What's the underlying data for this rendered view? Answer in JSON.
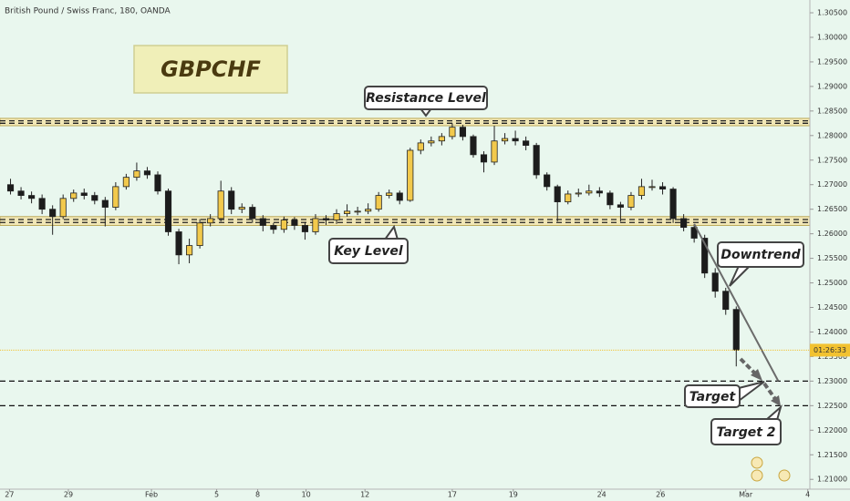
{
  "chart_data": {
    "type": "candlestick",
    "title": "British Pound / Swiss Franc, 180, OANDA",
    "symbol": "GBPCHF",
    "countdown": "01:26:33",
    "colors": {
      "up": "#f2c94c",
      "down": "#1c1c1c",
      "wick": "#222222",
      "zone": "#f2e6b0",
      "last": "#f2c230",
      "trend": "#6b6b6b"
    },
    "grid": false,
    "open": [
      1.27,
      1.2687,
      1.2678,
      1.2672,
      1.265,
      1.2635,
      1.2672,
      1.2683,
      1.2678,
      1.2668,
      1.2654,
      1.2696,
      1.2715,
      1.2728,
      1.272,
      1.2687,
      1.2604,
      1.2557,
      1.2576,
      1.2622,
      1.2631,
      1.2687,
      1.265,
      1.2654,
      1.2631,
      1.2617,
      1.2609,
      1.2628,
      1.2617,
      1.2604,
      1.2631,
      1.2628,
      1.2641,
      1.2646,
      1.2646,
      1.265,
      1.2678,
      1.2683,
      1.2668,
      1.277,
      1.2785,
      1.2789,
      1.2798,
      1.2817,
      1.2798,
      1.2761,
      1.2746,
      1.2789,
      1.2794,
      1.2789,
      1.278,
      1.272,
      1.2696,
      1.2665,
      1.2681,
      1.2683,
      1.2687,
      1.2683,
      1.2659,
      1.2654,
      1.2678,
      1.2696,
      1.2696,
      1.2691,
      1.2631,
      1.2613,
      1.2591,
      1.252,
      1.2483,
      1.2446
    ],
    "high": [
      1.2712,
      1.2695,
      1.2686,
      1.268,
      1.2658,
      1.268,
      1.269,
      1.2692,
      1.2685,
      1.2675,
      1.2705,
      1.2722,
      1.2745,
      1.2736,
      1.2727,
      1.2692,
      1.261,
      1.259,
      1.263,
      1.264,
      1.2708,
      1.2695,
      1.2662,
      1.266,
      1.2638,
      1.2622,
      1.2635,
      1.2634,
      1.2624,
      1.264,
      1.2638,
      1.265,
      1.266,
      1.2655,
      1.2662,
      1.2685,
      1.269,
      1.2688,
      1.2775,
      1.2792,
      1.2798,
      1.2805,
      1.2825,
      1.2822,
      1.2802,
      1.2768,
      1.282,
      1.2805,
      1.281,
      1.2798,
      1.2785,
      1.2725,
      1.27,
      1.2688,
      1.2692,
      1.27,
      1.2695,
      1.2688,
      1.2665,
      1.2685,
      1.2712,
      1.271,
      1.2705,
      1.2695,
      1.264,
      1.2618,
      1.2598,
      1.253,
      1.249,
      1.2452
    ],
    "low": [
      1.268,
      1.267,
      1.2662,
      1.264,
      1.2598,
      1.263,
      1.2665,
      1.267,
      1.266,
      1.2615,
      1.2648,
      1.269,
      1.2708,
      1.2712,
      1.268,
      1.2596,
      1.2538,
      1.254,
      1.257,
      1.2615,
      1.2625,
      1.264,
      1.2642,
      1.2622,
      1.2605,
      1.26,
      1.2602,
      1.2608,
      1.2588,
      1.2598,
      1.2618,
      1.262,
      1.2635,
      1.2638,
      1.264,
      1.2645,
      1.2672,
      1.266,
      1.2665,
      1.2762,
      1.2778,
      1.278,
      1.2792,
      1.279,
      1.2755,
      1.2725,
      1.274,
      1.2782,
      1.278,
      1.277,
      1.2712,
      1.2688,
      1.2625,
      1.266,
      1.2675,
      1.2678,
      1.2675,
      1.265,
      1.2625,
      1.2648,
      1.267,
      1.2688,
      1.268,
      1.2622,
      1.2605,
      1.2582,
      1.251,
      1.247,
      1.2435,
      1.233
    ],
    "close": [
      1.2687,
      1.2678,
      1.2672,
      1.265,
      1.2635,
      1.2672,
      1.2683,
      1.2678,
      1.2668,
      1.2654,
      1.2696,
      1.2715,
      1.2728,
      1.272,
      1.2687,
      1.2604,
      1.2557,
      1.2576,
      1.2622,
      1.2631,
      1.2687,
      1.265,
      1.2654,
      1.2631,
      1.2617,
      1.2609,
      1.2628,
      1.2617,
      1.2604,
      1.2631,
      1.2628,
      1.2641,
      1.2646,
      1.2646,
      1.265,
      1.2678,
      1.2683,
      1.2668,
      1.277,
      1.2785,
      1.2789,
      1.2798,
      1.2817,
      1.2798,
      1.2761,
      1.2746,
      1.2789,
      1.2794,
      1.2789,
      1.278,
      1.272,
      1.2696,
      1.2665,
      1.2681,
      1.2683,
      1.2687,
      1.2683,
      1.2659,
      1.2654,
      1.2678,
      1.2696,
      1.2696,
      1.2691,
      1.2631,
      1.2613,
      1.2591,
      1.252,
      1.2483,
      1.2446,
      1.2363
    ],
    "xlim": [
      -1,
      76
    ],
    "xticks": [
      {
        "value": -0.1,
        "label": "27"
      },
      {
        "value": 5.5,
        "label": "29"
      },
      {
        "value": 13.4,
        "label": "Feb"
      },
      {
        "value": 19.6,
        "label": "5"
      },
      {
        "value": 23.5,
        "label": "8"
      },
      {
        "value": 28.1,
        "label": "10"
      },
      {
        "value": 33.7,
        "label": "12"
      },
      {
        "value": 42.0,
        "label": "17"
      },
      {
        "value": 47.8,
        "label": "19"
      },
      {
        "value": 56.2,
        "label": "24"
      },
      {
        "value": 61.8,
        "label": "26"
      },
      {
        "value": 69.9,
        "label": "Mar"
      },
      {
        "value": 75.8,
        "label": "4"
      }
    ],
    "ylim": [
      1.208,
      1.3076
    ],
    "yticks": [
      {
        "value": 1.21,
        "label": "1.21000"
      },
      {
        "value": 1.215,
        "label": "1.21500"
      },
      {
        "value": 1.22,
        "label": "1.22000"
      },
      {
        "value": 1.225,
        "label": "1.22500"
      },
      {
        "value": 1.23,
        "label": "1.23000"
      },
      {
        "value": 1.235,
        "label": "1.23500"
      },
      {
        "value": 1.24,
        "label": "1.24000"
      },
      {
        "value": 1.245,
        "label": "1.24500"
      },
      {
        "value": 1.25,
        "label": "1.25000"
      },
      {
        "value": 1.255,
        "label": "1.25500"
      },
      {
        "value": 1.26,
        "label": "1.26000"
      },
      {
        "value": 1.265,
        "label": "1.26500"
      },
      {
        "value": 1.27,
        "label": "1.27000"
      },
      {
        "value": 1.275,
        "label": "1.27500"
      },
      {
        "value": 1.28,
        "label": "1.28000"
      },
      {
        "value": 1.285,
        "label": "1.28500"
      },
      {
        "value": 1.29,
        "label": "1.29000"
      },
      {
        "value": 1.295,
        "label": "1.29500"
      },
      {
        "value": 1.3,
        "label": "1.30000"
      },
      {
        "value": 1.305,
        "label": "1.30500"
      }
    ],
    "zones": [
      {
        "label": "Resistance Level",
        "low": 1.282,
        "high": 1.2835
      },
      {
        "label": "Key Level",
        "low": 1.2617,
        "high": 1.2635
      }
    ],
    "targets": [
      {
        "label": "Target",
        "value": 1.23
      },
      {
        "label": "Target 2",
        "value": 1.225
      }
    ],
    "trendline": {
      "label": "Downtrend",
      "x": [
        65,
        73
      ],
      "y": [
        1.262,
        1.23
      ]
    }
  }
}
